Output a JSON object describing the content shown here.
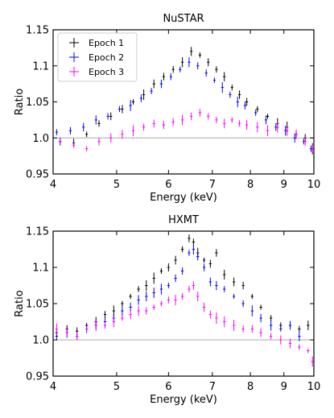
{
  "chart_data": [
    {
      "type": "scatter",
      "title": "NuSTAR",
      "xlabel": "Energy (keV)",
      "ylabel": "Ratio",
      "xscale": "log",
      "xlim": [
        4,
        10
      ],
      "ylim": [
        0.95,
        1.15
      ],
      "xticks": [
        "4",
        "5",
        "6",
        "7",
        "8",
        "9",
        "10"
      ],
      "yticks": [
        "0.95",
        "1.0",
        "1.05",
        "1.1",
        "1.15"
      ],
      "reference_line": 1.0,
      "legend": "top-left",
      "series": [
        {
          "name": "Epoch 1",
          "color": "#000000",
          "x": [
            4.1,
            4.3,
            4.5,
            4.7,
            4.9,
            5.1,
            5.3,
            5.5,
            5.7,
            5.9,
            6.1,
            6.3,
            6.5,
            6.7,
            6.9,
            7.1,
            7.3,
            7.5,
            7.7,
            7.9,
            8.2,
            8.5,
            8.8,
            9.1,
            9.4,
            9.7,
            9.95
          ],
          "y": [
            0.995,
            0.993,
            1.005,
            1.02,
            1.03,
            1.04,
            1.05,
            1.06,
            1.075,
            1.085,
            1.095,
            1.105,
            1.12,
            1.115,
            1.105,
            1.095,
            1.085,
            1.07,
            1.06,
            1.05,
            1.04,
            1.03,
            1.02,
            1.015,
            1.005,
            1.0,
            0.985
          ]
        },
        {
          "name": "Epoch 2",
          "color": "#0000ff",
          "x": [
            4.05,
            4.25,
            4.45,
            4.65,
            4.85,
            5.05,
            5.25,
            5.45,
            5.65,
            5.85,
            6.05,
            6.25,
            6.45,
            6.65,
            6.85,
            7.05,
            7.25,
            7.45,
            7.65,
            7.85,
            8.15,
            8.45,
            8.75,
            9.05,
            9.35,
            9.65,
            9.9
          ],
          "y": [
            1.008,
            1.01,
            1.015,
            1.025,
            1.03,
            1.04,
            1.045,
            1.055,
            1.065,
            1.075,
            1.085,
            1.095,
            1.105,
            1.1,
            1.09,
            1.08,
            1.07,
            1.06,
            1.05,
            1.045,
            1.035,
            1.025,
            1.015,
            1.01,
            1.0,
            0.995,
            0.985
          ]
        },
        {
          "name": "Epoch 3",
          "color": "#ff00ff",
          "x": [
            4.1,
            4.3,
            4.5,
            4.7,
            4.9,
            5.1,
            5.3,
            5.5,
            5.7,
            5.9,
            6.1,
            6.3,
            6.5,
            6.7,
            6.9,
            7.1,
            7.3,
            7.5,
            7.7,
            7.9,
            8.2,
            8.5,
            8.8,
            9.1,
            9.4,
            9.7,
            9.95
          ],
          "y": [
            0.995,
            0.99,
            0.985,
            0.995,
            1.0,
            1.005,
            1.01,
            1.015,
            1.02,
            1.018,
            1.022,
            1.025,
            1.03,
            1.035,
            1.03,
            1.025,
            1.02,
            1.025,
            1.02,
            1.018,
            1.015,
            1.01,
            1.015,
            1.01,
            1.005,
            0.995,
            0.985
          ]
        }
      ]
    },
    {
      "type": "scatter",
      "title": "HXMT",
      "xlabel": "Energy (keV)",
      "ylabel": "Ratio",
      "xscale": "log",
      "xlim": [
        4,
        10
      ],
      "ylim": [
        0.95,
        1.15
      ],
      "xticks": [
        "4",
        "5",
        "6",
        "7",
        "8",
        "9",
        "10"
      ],
      "yticks": [
        "0.95",
        "1.0",
        "1.05",
        "1.1",
        "1.15"
      ],
      "reference_line": 1.0,
      "series": [
        {
          "name": "Epoch 1",
          "color": "#000000",
          "x": [
            4.05,
            4.2,
            4.35,
            4.5,
            4.65,
            4.8,
            4.95,
            5.1,
            5.25,
            5.4,
            5.55,
            5.7,
            5.85,
            6.0,
            6.15,
            6.3,
            6.45,
            6.55,
            6.65,
            6.8,
            6.95,
            7.1,
            7.3,
            7.55,
            7.8,
            8.05,
            8.3,
            8.6,
            8.9,
            9.2,
            9.5,
            9.8
          ],
          "y": [
            1.01,
            1.015,
            1.012,
            1.02,
            1.025,
            1.035,
            1.04,
            1.05,
            1.06,
            1.07,
            1.075,
            1.085,
            1.095,
            1.1,
            1.11,
            1.125,
            1.14,
            1.135,
            1.12,
            1.11,
            1.105,
            1.12,
            1.09,
            1.08,
            1.075,
            1.06,
            1.045,
            1.03,
            1.02,
            1.02,
            1.015,
            1.02
          ]
        },
        {
          "name": "Epoch 2",
          "color": "#0000ff",
          "x": [
            4.05,
            4.2,
            4.35,
            4.5,
            4.65,
            4.8,
            4.95,
            5.1,
            5.25,
            5.4,
            5.55,
            5.7,
            5.85,
            6.0,
            6.15,
            6.3,
            6.45,
            6.55,
            6.65,
            6.8,
            6.95,
            7.1,
            7.3,
            7.55,
            7.8,
            8.05,
            8.3,
            8.6,
            8.9,
            9.2,
            9.5
          ],
          "y": [
            1.005,
            1.01,
            1.005,
            1.015,
            1.02,
            1.025,
            1.03,
            1.04,
            1.045,
            1.055,
            1.06,
            1.065,
            1.07,
            1.075,
            1.085,
            1.095,
            1.12,
            1.125,
            1.115,
            1.1,
            1.08,
            1.075,
            1.07,
            1.06,
            1.05,
            1.04,
            1.03,
            1.02,
            1.015,
            1.02,
            1.005
          ]
        },
        {
          "name": "Epoch 3",
          "color": "#ff00ff",
          "x": [
            4.05,
            4.2,
            4.35,
            4.5,
            4.65,
            4.8,
            4.95,
            5.1,
            5.25,
            5.4,
            5.55,
            5.7,
            5.85,
            6.0,
            6.15,
            6.3,
            6.45,
            6.55,
            6.65,
            6.8,
            6.95,
            7.1,
            7.3,
            7.55,
            7.8,
            8.05,
            8.3,
            8.6,
            8.9,
            9.2,
            9.5,
            9.8,
            9.95
          ],
          "y": [
            1.015,
            1.01,
            1.005,
            1.015,
            1.02,
            1.02,
            1.025,
            1.03,
            1.035,
            1.04,
            1.04,
            1.045,
            1.05,
            1.055,
            1.055,
            1.06,
            1.07,
            1.075,
            1.06,
            1.045,
            1.035,
            1.03,
            1.025,
            1.02,
            1.015,
            1.015,
            1.01,
            1.005,
            1.0,
            0.995,
            0.99,
            0.985,
            0.97
          ]
        }
      ]
    }
  ]
}
